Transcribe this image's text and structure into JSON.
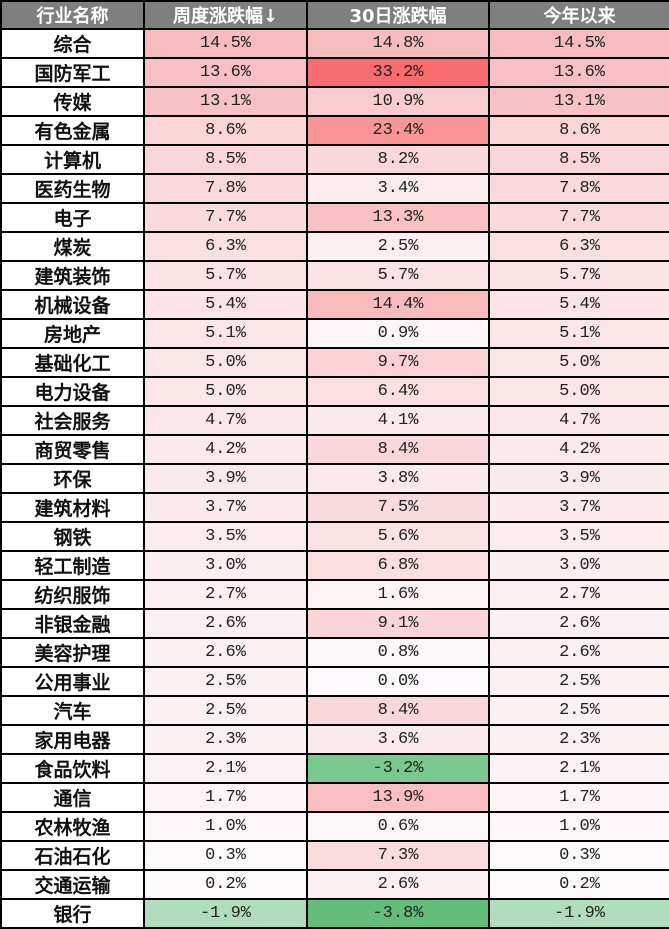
{
  "headers": [
    "行业名称",
    "周度涨跌幅↓",
    "30日涨跌幅",
    "今年以来"
  ],
  "rows": [
    {
      "name": "综合",
      "weekly": "14.5%",
      "d30": "14.8%",
      "ytd": "14.5%",
      "c1": "#f8bcbf",
      "c2": "#f8bcbf",
      "c3": "#f8bcbf"
    },
    {
      "name": "国防军工",
      "weekly": "13.6%",
      "d30": "33.2%",
      "ytd": "13.6%",
      "c1": "#f8c0c3",
      "c2": "#f86b6e",
      "c3": "#f8c0c3"
    },
    {
      "name": "传媒",
      "weekly": "13.1%",
      "d30": "10.9%",
      "ytd": "13.1%",
      "c1": "#f8c2c5",
      "c2": "#f9cccf",
      "c3": "#f8c2c5"
    },
    {
      "name": "有色金属",
      "weekly": "8.6%",
      "d30": "23.4%",
      "ytd": "8.6%",
      "c1": "#fad6d8",
      "c2": "#f99597",
      "c3": "#fad6d8"
    },
    {
      "name": "计算机",
      "weekly": "8.5%",
      "d30": "8.2%",
      "ytd": "8.5%",
      "c1": "#fad6d9",
      "c2": "#fad8da",
      "c3": "#fad6d9"
    },
    {
      "name": "医药生物",
      "weekly": "7.8%",
      "d30": "3.4%",
      "ytd": "7.8%",
      "c1": "#fad9dc",
      "c2": "#fbeced",
      "c3": "#fad9dc"
    },
    {
      "name": "电子",
      "weekly": "7.7%",
      "d30": "13.3%",
      "ytd": "7.7%",
      "c1": "#fadadc",
      "c2": "#f9c1c4",
      "c3": "#fadadc"
    },
    {
      "name": "煤炭",
      "weekly": "6.3%",
      "d30": "2.5%",
      "ytd": "6.3%",
      "c1": "#fbe0e2",
      "c2": "#fbeff1",
      "c3": "#fbe0e2"
    },
    {
      "name": "建筑装饰",
      "weekly": "5.7%",
      "d30": "5.7%",
      "ytd": "5.7%",
      "c1": "#fbe2e4",
      "c2": "#fbe2e4",
      "c3": "#fbe2e4"
    },
    {
      "name": "机械设备",
      "weekly": "5.4%",
      "d30": "14.4%",
      "ytd": "5.4%",
      "c1": "#fbe4e6",
      "c2": "#f8bcbf",
      "c3": "#fbe4e6"
    },
    {
      "name": "房地产",
      "weekly": "5.1%",
      "d30": "0.9%",
      "ytd": "5.1%",
      "c1": "#fbe5e7",
      "c2": "#fcf6f8",
      "c3": "#fbe5e7"
    },
    {
      "name": "基础化工",
      "weekly": "5.0%",
      "d30": "9.7%",
      "ytd": "5.0%",
      "c1": "#fbe6e8",
      "c2": "#fad1d4",
      "c3": "#fbe6e8"
    },
    {
      "name": "电力设备",
      "weekly": "5.0%",
      "d30": "6.4%",
      "ytd": "5.0%",
      "c1": "#fbe6e8",
      "c2": "#fbdfe1",
      "c3": "#fbe6e8"
    },
    {
      "name": "社会服务",
      "weekly": "4.7%",
      "d30": "4.1%",
      "ytd": "4.7%",
      "c1": "#fbe7e9",
      "c2": "#fbe9eb",
      "c3": "#fbe7e9"
    },
    {
      "name": "商贸零售",
      "weekly": "4.2%",
      "d30": "8.4%",
      "ytd": "4.2%",
      "c1": "#fbe9eb",
      "c2": "#fad7da",
      "c3": "#fbe9eb"
    },
    {
      "name": "环保",
      "weekly": "3.9%",
      "d30": "3.8%",
      "ytd": "3.9%",
      "c1": "#fbeaec",
      "c2": "#fbeaec",
      "c3": "#fbeaec"
    },
    {
      "name": "建筑材料",
      "weekly": "3.7%",
      "d30": "7.5%",
      "ytd": "3.7%",
      "c1": "#fbebed",
      "c2": "#fadbdd",
      "c3": "#fbebed"
    },
    {
      "name": "钢铁",
      "weekly": "3.5%",
      "d30": "5.6%",
      "ytd": "3.5%",
      "c1": "#fbeced",
      "c2": "#fbe3e5",
      "c3": "#fbeced"
    },
    {
      "name": "轻工制造",
      "weekly": "3.0%",
      "d30": "6.8%",
      "ytd": "3.0%",
      "c1": "#fbeef0",
      "c2": "#fbdee0",
      "c3": "#fbeef0"
    },
    {
      "name": "纺织服饰",
      "weekly": "2.7%",
      "d30": "1.6%",
      "ytd": "2.7%",
      "c1": "#fbeff1",
      "c2": "#fcf3f5",
      "c3": "#fbeff1"
    },
    {
      "name": "非银金融",
      "weekly": "2.6%",
      "d30": "9.1%",
      "ytd": "2.6%",
      "c1": "#fbf0f2",
      "c2": "#fad4d6",
      "c3": "#fbf0f2"
    },
    {
      "name": "美容护理",
      "weekly": "2.6%",
      "d30": "0.8%",
      "ytd": "2.6%",
      "c1": "#fbf0f2",
      "c2": "#fcf7f9",
      "c3": "#fbf0f2"
    },
    {
      "name": "公用事业",
      "weekly": "2.5%",
      "d30": "0.0%",
      "ytd": "2.5%",
      "c1": "#fbf0f2",
      "c2": "#fcfafc",
      "c3": "#fbf0f2"
    },
    {
      "name": "汽车",
      "weekly": "2.5%",
      "d30": "8.4%",
      "ytd": "2.5%",
      "c1": "#fbf0f2",
      "c2": "#fad7da",
      "c3": "#fbf0f2"
    },
    {
      "name": "家用电器",
      "weekly": "2.3%",
      "d30": "3.6%",
      "ytd": "2.3%",
      "c1": "#fbf1f3",
      "c2": "#fbebed",
      "c3": "#fbf1f3"
    },
    {
      "name": "食品饮料",
      "weekly": "2.1%",
      "d30": "-3.2%",
      "ytd": "2.1%",
      "c1": "#fbf2f4",
      "c2": "#7ac88e",
      "c3": "#fbf2f4"
    },
    {
      "name": "通信",
      "weekly": "1.7%",
      "d30": "13.9%",
      "ytd": "1.7%",
      "c1": "#fcf4f6",
      "c2": "#f8bec1",
      "c3": "#fcf4f6"
    },
    {
      "name": "农林牧渔",
      "weekly": "1.0%",
      "d30": "0.6%",
      "ytd": "1.0%",
      "c1": "#fcf6f8",
      "c2": "#fcf8fa",
      "c3": "#fcf6f8"
    },
    {
      "name": "石油石化",
      "weekly": "0.3%",
      "d30": "7.3%",
      "ytd": "0.3%",
      "c1": "#fcf9fb",
      "c2": "#fadcde",
      "c3": "#fcf9fb"
    },
    {
      "name": "交通运输",
      "weekly": "0.2%",
      "d30": "2.6%",
      "ytd": "0.2%",
      "c1": "#fcf9fb",
      "c2": "#fbeff1",
      "c3": "#fcf9fb"
    },
    {
      "name": "银行",
      "weekly": "-1.9%",
      "d30": "-3.8%",
      "ytd": "-1.9%",
      "c1": "#b1ddbc",
      "c2": "#63be7b",
      "c3": "#b1ddbc"
    }
  ],
  "chart_data": {
    "type": "table",
    "title": "",
    "columns": [
      "行业名称",
      "周度涨跌幅↓",
      "30日涨跌幅",
      "今年以来"
    ],
    "sort": {
      "column": "周度涨跌幅",
      "order": "descending"
    },
    "color_scale": {
      "positive": "#f8696b",
      "neutral": "#fcfcff",
      "negative": "#63be7b"
    },
    "categories": [
      "综合",
      "国防军工",
      "传媒",
      "有色金属",
      "计算机",
      "医药生物",
      "电子",
      "煤炭",
      "建筑装饰",
      "机械设备",
      "房地产",
      "基础化工",
      "电力设备",
      "社会服务",
      "商贸零售",
      "环保",
      "建筑材料",
      "钢铁",
      "轻工制造",
      "纺织服饰",
      "非银金融",
      "美容护理",
      "公用事业",
      "汽车",
      "家用电器",
      "食品饮料",
      "通信",
      "农林牧渔",
      "石油石化",
      "交通运输",
      "银行"
    ],
    "series": [
      {
        "name": "周度涨跌幅",
        "unit": "%",
        "values": [
          14.5,
          13.6,
          13.1,
          8.6,
          8.5,
          7.8,
          7.7,
          6.3,
          5.7,
          5.4,
          5.1,
          5.0,
          5.0,
          4.7,
          4.2,
          3.9,
          3.7,
          3.5,
          3.0,
          2.7,
          2.6,
          2.6,
          2.5,
          2.5,
          2.3,
          2.1,
          1.7,
          1.0,
          0.3,
          0.2,
          -1.9
        ]
      },
      {
        "name": "30日涨跌幅",
        "unit": "%",
        "values": [
          14.8,
          33.2,
          10.9,
          23.4,
          8.2,
          3.4,
          13.3,
          2.5,
          5.7,
          14.4,
          0.9,
          9.7,
          6.4,
          4.1,
          8.4,
          3.8,
          7.5,
          5.6,
          6.8,
          1.6,
          9.1,
          0.8,
          0.0,
          8.4,
          3.6,
          -3.2,
          13.9,
          0.6,
          7.3,
          2.6,
          -3.8
        ]
      },
      {
        "name": "今年以来",
        "unit": "%",
        "values": [
          14.5,
          13.6,
          13.1,
          8.6,
          8.5,
          7.8,
          7.7,
          6.3,
          5.7,
          5.4,
          5.1,
          5.0,
          5.0,
          4.7,
          4.2,
          3.9,
          3.7,
          3.5,
          3.0,
          2.7,
          2.6,
          2.6,
          2.5,
          2.5,
          2.3,
          2.1,
          1.7,
          1.0,
          0.3,
          0.2,
          -1.9
        ]
      }
    ]
  }
}
